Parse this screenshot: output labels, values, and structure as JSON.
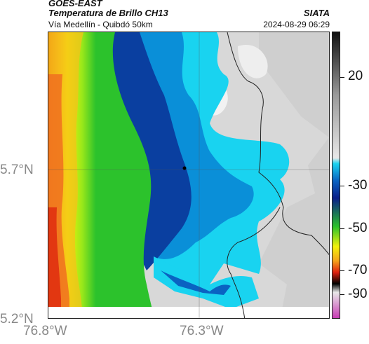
{
  "header": {
    "title_line1": "GOES-EAST",
    "title_line2": "Temperatura de Brillo CH13",
    "organization": "SIATA",
    "subtitle": "Vía Medellín - Quibdó 50km",
    "timestamp": "2024-08-29 06:29"
  },
  "map": {
    "y_labels": [
      "5.7°N",
      "5.2°N"
    ],
    "x_labels": [
      "76.8°W",
      "76.3°W"
    ],
    "marker": "location-marker"
  },
  "colorbar": {
    "tick_labels": [
      "20",
      "-30",
      "-50",
      "-70",
      "-90"
    ],
    "range": [
      -95,
      35
    ],
    "colors": {
      "warm_gray_top": "#111111",
      "mid_gray": "#9a9a9a",
      "light_gray": "#e8e8e8",
      "cyan": "#19d3f0",
      "blue": "#0a63c2",
      "dark_blue": "#0a1f8a",
      "green": "#2cc22c",
      "yellow": "#f2f20a",
      "orange": "#f5a21a",
      "red": "#e02010",
      "black": "#000000",
      "magenta": "#c83cb4"
    }
  }
}
